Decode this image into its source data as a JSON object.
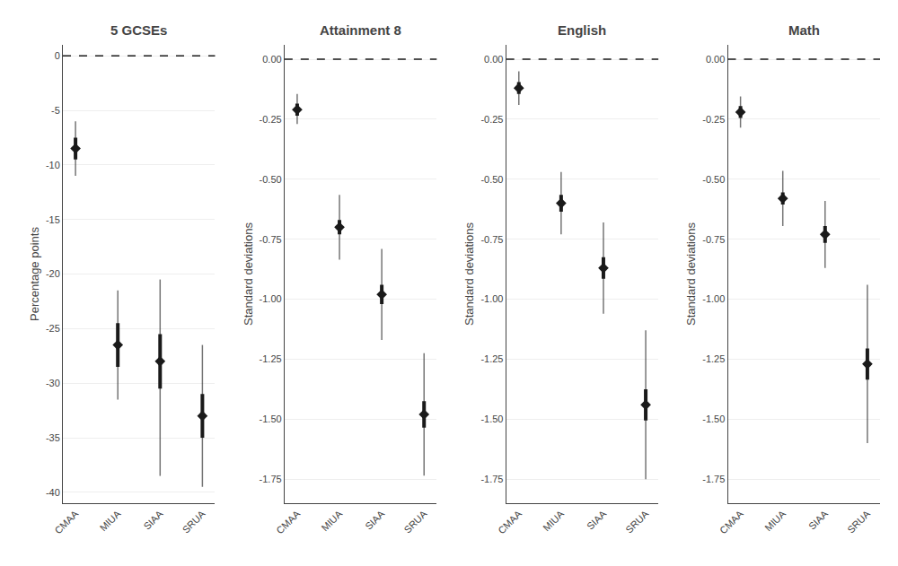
{
  "chart_data": [
    {
      "type": "scatter",
      "title": "5 GCSEs",
      "ylabel": "Percentage points",
      "categories": [
        "CMAA",
        "MIUA",
        "SIAA",
        "SRUA"
      ],
      "values": [
        -8.5,
        -26.5,
        -28.0,
        -33.0
      ],
      "ci_inner_low": [
        -9.5,
        -28.5,
        -30.5,
        -35.0
      ],
      "ci_inner_high": [
        -7.5,
        -24.5,
        -25.5,
        -31.0
      ],
      "ci_outer_low": [
        -11.0,
        -31.5,
        -38.5,
        -39.5
      ],
      "ci_outer_high": [
        -6.0,
        -21.5,
        -20.5,
        -26.5
      ],
      "reference_line": 0,
      "ylim": [
        -41.0,
        1.0
      ],
      "yticks": [
        0,
        -5,
        -10,
        -15,
        -20,
        -25,
        -30,
        -35,
        -40
      ],
      "grid": true,
      "color": "#1a1a1a",
      "marker": "diamond"
    },
    {
      "type": "scatter",
      "title": "Attainment 8",
      "ylabel": "Standard deviations",
      "categories": [
        "CMAA",
        "MIUA",
        "SIAA",
        "SRUA"
      ],
      "values": [
        -0.21,
        -0.7,
        -0.98,
        -1.48
      ],
      "ci_inner_low": [
        -0.235,
        -0.73,
        -1.02,
        -1.535
      ],
      "ci_inner_high": [
        -0.185,
        -0.67,
        -0.94,
        -1.425
      ],
      "ci_outer_low": [
        -0.27,
        -0.835,
        -1.17,
        -1.735
      ],
      "ci_outer_high": [
        -0.145,
        -0.565,
        -0.79,
        -1.225
      ],
      "reference_line": 0.0,
      "ylim": [
        -1.85,
        0.06
      ],
      "yticks": [
        {
          "value": 0.0,
          "label": "0.00"
        },
        {
          "value": -0.25,
          "label": "-0.25"
        },
        {
          "value": -0.5,
          "label": "-0.50"
        },
        {
          "value": -0.75,
          "label": "-0.75"
        },
        {
          "value": -1.0,
          "label": "-1.00"
        },
        {
          "value": -1.25,
          "label": "-1.25"
        },
        {
          "value": -1.5,
          "label": "-1.50"
        },
        {
          "value": -1.75,
          "label": "-1.75"
        }
      ],
      "grid": true,
      "color": "#1a1a1a",
      "marker": "diamond"
    },
    {
      "type": "scatter",
      "title": "English",
      "ylabel": "Standard deviations",
      "categories": [
        "CMAA",
        "MIUA",
        "SIAA",
        "SRUA"
      ],
      "values": [
        -0.12,
        -0.6,
        -0.87,
        -1.44
      ],
      "ci_inner_low": [
        -0.145,
        -0.635,
        -0.915,
        -1.505
      ],
      "ci_inner_high": [
        -0.095,
        -0.565,
        -0.825,
        -1.375
      ],
      "ci_outer_low": [
        -0.19,
        -0.73,
        -1.06,
        -1.75
      ],
      "ci_outer_high": [
        -0.05,
        -0.47,
        -0.68,
        -1.13
      ],
      "reference_line": 0.0,
      "ylim": [
        -1.85,
        0.06
      ],
      "yticks": [
        {
          "value": 0.0,
          "label": "0.00"
        },
        {
          "value": -0.25,
          "label": "-0.25"
        },
        {
          "value": -0.5,
          "label": "-0.50"
        },
        {
          "value": -0.75,
          "label": "-0.75"
        },
        {
          "value": -1.0,
          "label": "-1.00"
        },
        {
          "value": -1.25,
          "label": "-1.25"
        },
        {
          "value": -1.5,
          "label": "-1.50"
        },
        {
          "value": -1.75,
          "label": "-1.75"
        }
      ],
      "grid": true,
      "color": "#1a1a1a",
      "marker": "diamond"
    },
    {
      "type": "scatter",
      "title": "Math",
      "ylabel": "Standard deviations",
      "categories": [
        "CMAA",
        "MIUA",
        "SIAA",
        "SRUA"
      ],
      "values": [
        -0.22,
        -0.58,
        -0.73,
        -1.27
      ],
      "ci_inner_low": [
        -0.245,
        -0.605,
        -0.765,
        -1.335
      ],
      "ci_inner_high": [
        -0.195,
        -0.555,
        -0.695,
        -1.205
      ],
      "ci_outer_low": [
        -0.285,
        -0.695,
        -0.87,
        -1.6
      ],
      "ci_outer_high": [
        -0.155,
        -0.465,
        -0.59,
        -0.94
      ],
      "reference_line": 0.0,
      "ylim": [
        -1.85,
        0.06
      ],
      "yticks": [
        {
          "value": 0.0,
          "label": "0.00"
        },
        {
          "value": -0.25,
          "label": "-0.25"
        },
        {
          "value": -0.5,
          "label": "-0.50"
        },
        {
          "value": -0.75,
          "label": "-0.75"
        },
        {
          "value": -1.0,
          "label": "-1.00"
        },
        {
          "value": -1.25,
          "label": "-1.25"
        },
        {
          "value": -1.5,
          "label": "-1.50"
        },
        {
          "value": -1.75,
          "label": "-1.75"
        }
      ],
      "grid": true,
      "color": "#1a1a1a",
      "marker": "diamond"
    }
  ]
}
